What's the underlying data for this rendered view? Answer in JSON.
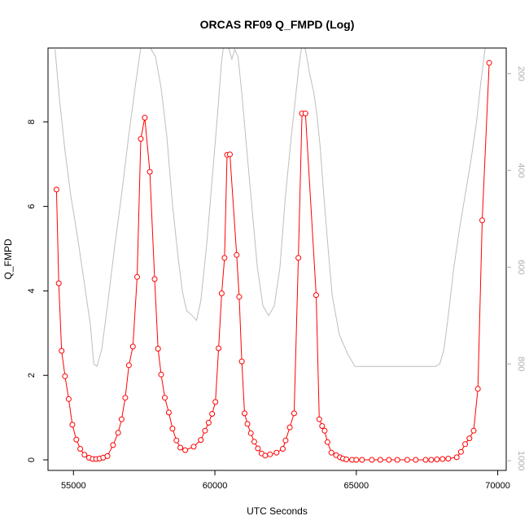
{
  "chart_data": {
    "type": "line",
    "title": "ORCAS RF09 Q_FMPD (Log)",
    "xlabel": "UTC Seconds",
    "ylabel": "Q_FMPD",
    "xlim": [
      54100,
      70300
    ],
    "ylim": [
      -0.25,
      9.75
    ],
    "x_ticks": [
      55000,
      60000,
      65000,
      70000
    ],
    "y_ticks": [
      0,
      2,
      4,
      6,
      8
    ],
    "y2_ticks": [
      200,
      400,
      600,
      800,
      1000
    ],
    "y2lim": [
      1020,
      147
    ],
    "y2_reversed": true,
    "colors": {
      "series": "#ff0000",
      "secondary": "#bebebe"
    },
    "series": [
      {
        "role": "Q_FMPD",
        "marker": "open-circle",
        "color": "#ff0000",
        "x": [
          54400,
          54480,
          54580,
          54700,
          54830,
          54960,
          55100,
          55240,
          55390,
          55550,
          55680,
          55800,
          55920,
          56050,
          56200,
          56400,
          56580,
          56700,
          56830,
          56960,
          57100,
          57250,
          57380,
          57520,
          57700,
          57870,
          57990,
          58100,
          58230,
          58370,
          58500,
          58640,
          58780,
          58950,
          59250,
          59500,
          59650,
          59780,
          59900,
          60020,
          60130,
          60240,
          60340,
          60430,
          60530,
          60770,
          60860,
          60950,
          61050,
          61150,
          61270,
          61390,
          61520,
          61650,
          61780,
          61950,
          62180,
          62400,
          62500,
          62650,
          62800,
          62950,
          63080,
          63200,
          63580,
          63690,
          63790,
          63880,
          63980,
          64120,
          64290,
          64420,
          64530,
          64650,
          64850,
          65000,
          65200,
          65550,
          65850,
          66150,
          66450,
          66800,
          67100,
          67450,
          67650,
          67850,
          68050,
          68250,
          68550,
          68700,
          68850,
          69000,
          69150,
          69300,
          69450,
          69700
        ],
        "y": [
          6.4,
          4.18,
          2.58,
          1.98,
          1.44,
          0.83,
          0.48,
          0.26,
          0.12,
          0.05,
          0.02,
          0.02,
          0.03,
          0.05,
          0.09,
          0.35,
          0.64,
          0.96,
          1.47,
          2.24,
          2.68,
          4.33,
          7.6,
          8.1,
          6.82,
          4.28,
          2.63,
          2.02,
          1.47,
          1.12,
          0.74,
          0.46,
          0.29,
          0.23,
          0.31,
          0.47,
          0.69,
          0.88,
          1.09,
          1.37,
          2.64,
          3.94,
          4.78,
          7.22,
          7.23,
          4.85,
          3.86,
          2.33,
          1.1,
          0.85,
          0.63,
          0.43,
          0.27,
          0.15,
          0.1,
          0.13,
          0.17,
          0.26,
          0.46,
          0.77,
          1.1,
          4.78,
          8.2,
          8.2,
          3.9,
          0.96,
          0.8,
          0.69,
          0.42,
          0.17,
          0.11,
          0.06,
          0.03,
          0.01,
          0.0,
          0.0,
          0.0,
          0.0,
          0.0,
          0.0,
          0.0,
          0.0,
          0.0,
          0.0,
          0.0,
          0.01,
          0.02,
          0.03,
          0.06,
          0.19,
          0.37,
          0.51,
          0.69,
          1.68,
          5.67,
          9.4
        ]
      },
      {
        "role": "right-axis trace",
        "marker": "none",
        "color": "#bebebe",
        "x": [
          54350,
          54500,
          54700,
          54900,
          55150,
          55400,
          55600,
          55720,
          55830,
          56000,
          56200,
          56450,
          56700,
          56950,
          57200,
          57420,
          57550,
          57750,
          57900,
          58100,
          58300,
          58500,
          58700,
          58850,
          59000,
          59200,
          59350,
          59500,
          59700,
          59900,
          60100,
          60230,
          60330,
          60450,
          60600,
          60700,
          60820,
          60950,
          61100,
          61300,
          61500,
          61700,
          61900,
          62100,
          62300,
          62500,
          62700,
          62850,
          62980,
          63080,
          63200,
          63350,
          63500,
          63620,
          63720,
          63850,
          64000,
          64150,
          64400,
          64700,
          64950,
          65100,
          65300,
          65700,
          66200,
          66800,
          67400,
          67800,
          67950,
          68100,
          68250,
          68450,
          68650,
          68850,
          69050,
          69250,
          69400,
          69550,
          69700
        ],
        "y": [
          150,
          250,
          360,
          450,
          540,
          640,
          720,
          800,
          805,
          770,
          680,
          560,
          450,
          330,
          220,
          130,
          110,
          150,
          165,
          230,
          330,
          470,
          580,
          650,
          690,
          700,
          710,
          670,
          560,
          420,
          280,
          180,
          130,
          140,
          170,
          150,
          165,
          240,
          340,
          470,
          600,
          680,
          700,
          680,
          600,
          450,
          330,
          250,
          180,
          140,
          150,
          200,
          240,
          290,
          350,
          450,
          560,
          660,
          740,
          780,
          805,
          805,
          805,
          805,
          805,
          805,
          805,
          805,
          800,
          770,
          700,
          600,
          520,
          450,
          380,
          300,
          220,
          150,
          100
        ]
      }
    ]
  }
}
